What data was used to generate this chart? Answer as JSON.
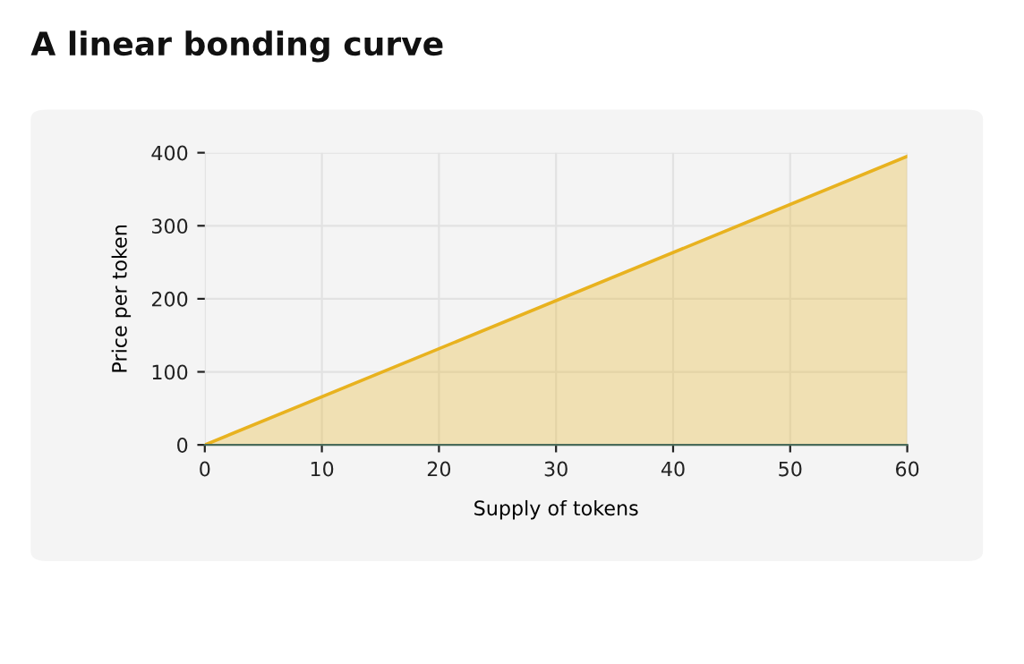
{
  "chart_data": {
    "type": "area",
    "title": "A linear bonding curve",
    "xlabel": "Supply of tokens",
    "ylabel": "Price per token",
    "x": [
      0,
      60
    ],
    "series": [
      {
        "color": "#e8b21f",
        "values": [
          0,
          395
        ]
      }
    ],
    "xlim": [
      0,
      60
    ],
    "ylim": [
      0,
      400
    ],
    "xticks": [
      0,
      10,
      20,
      30,
      40,
      50,
      60
    ],
    "yticks": [
      0,
      100,
      200,
      300,
      400
    ],
    "grid": true,
    "legend": false
  }
}
